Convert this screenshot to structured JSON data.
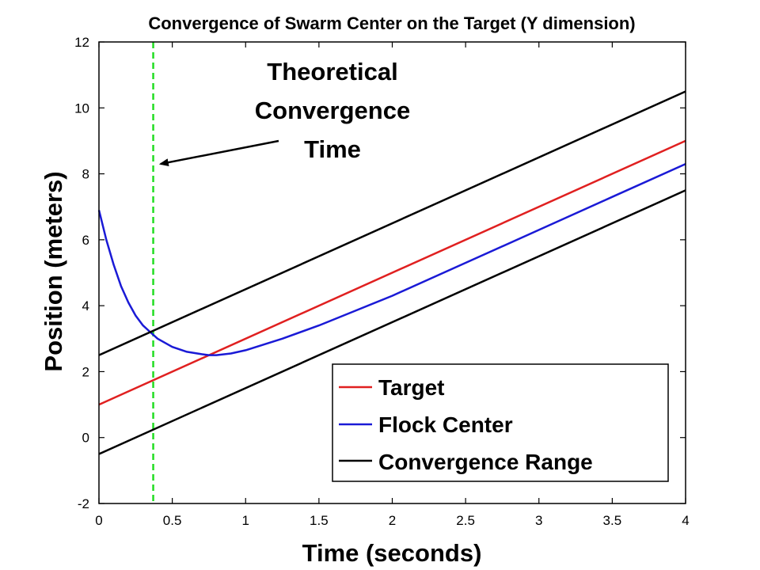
{
  "chart_data": {
    "type": "line",
    "title": "Convergence of Swarm Center on the Target (Y dimension)",
    "xlabel": "Time (seconds)",
    "ylabel": "Position (meters)",
    "xlim": [
      0,
      4
    ],
    "ylim": [
      -2,
      12
    ],
    "xticks": [
      0,
      0.5,
      1,
      1.5,
      2,
      2.5,
      3,
      3.5,
      4
    ],
    "xtick_labels": [
      "0",
      "0.5",
      "1",
      "1.5",
      "2",
      "2.5",
      "3",
      "3.5",
      "4"
    ],
    "yticks": [
      -2,
      0,
      2,
      4,
      6,
      8,
      10,
      12
    ],
    "ytick_labels": [
      "-2",
      "0",
      "2",
      "4",
      "6",
      "8",
      "10",
      "12"
    ],
    "grid": false,
    "legend_position": "bottom-right",
    "series": [
      {
        "name": "Target",
        "color": "#e02020",
        "x": [
          0,
          4
        ],
        "y": [
          1,
          9
        ]
      },
      {
        "name": "Flock Center",
        "color": "#1a1ad6",
        "x": [
          0,
          0.05,
          0.1,
          0.15,
          0.2,
          0.25,
          0.3,
          0.35,
          0.4,
          0.5,
          0.6,
          0.7,
          0.75,
          0.8,
          0.9,
          1.0,
          1.25,
          1.5,
          1.75,
          2.0,
          2.5,
          3.0,
          3.5,
          4.0
        ],
        "y": [
          6.9,
          6.0,
          5.25,
          4.6,
          4.1,
          3.7,
          3.4,
          3.2,
          3.0,
          2.75,
          2.6,
          2.53,
          2.5,
          2.5,
          2.55,
          2.65,
          3.0,
          3.4,
          3.85,
          4.3,
          5.3,
          6.3,
          7.3,
          8.3
        ]
      },
      {
        "name": "Convergence Range",
        "color": "#000000",
        "x": [
          0,
          4
        ],
        "y": [
          2.5,
          10.5
        ]
      },
      {
        "name": "",
        "color": "#000000",
        "x": [
          0,
          4
        ],
        "y": [
          -0.5,
          7.5
        ]
      }
    ],
    "vertical_line": {
      "x": 0.37,
      "color": "#22dd22",
      "style": "dashed"
    },
    "annotation": {
      "lines": [
        "Theoretical",
        "Convergence",
        "Time"
      ],
      "arrow_target": [
        0.42,
        8.3
      ]
    },
    "legend_entries": [
      {
        "label": "Target",
        "color": "#e02020"
      },
      {
        "label": "Flock Center",
        "color": "#1a1ad6"
      },
      {
        "label": "Convergence Range",
        "color": "#000000"
      }
    ]
  }
}
